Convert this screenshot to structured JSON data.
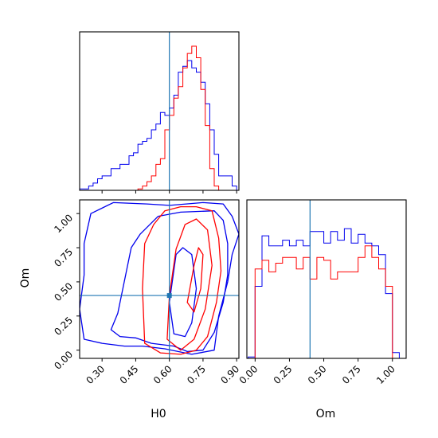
{
  "chart_data": {
    "type": "corner",
    "parameters": [
      {
        "name": "H0",
        "label": "H0",
        "range": [
          0.2,
          0.91
        ],
        "ticks": [
          "0.30",
          "0.45",
          "0.60",
          "0.75",
          "0.90"
        ],
        "tick_values": [
          0.3,
          0.45,
          0.6,
          0.75,
          0.9
        ],
        "truth": 0.6
      },
      {
        "name": "Om",
        "label": "Om",
        "range": [
          -0.06,
          1.1
        ],
        "ticks": [
          "0.00",
          "0.25",
          "0.50",
          "0.75",
          "1.00"
        ],
        "tick_values": [
          0.0,
          0.25,
          0.5,
          0.75,
          1.0
        ],
        "truth": 0.4
      }
    ],
    "colors": {
      "series_a": "#0000ee",
      "series_b": "#ff0000",
      "truth": "#1f77b4"
    },
    "series": [
      {
        "color": "#0000ee",
        "hist_H0": {
          "bins": [
            0.2,
            0.22,
            0.24,
            0.26,
            0.28,
            0.3,
            0.32,
            0.34,
            0.36,
            0.38,
            0.4,
            0.42,
            0.44,
            0.46,
            0.48,
            0.5,
            0.52,
            0.54,
            0.56,
            0.58,
            0.6,
            0.62,
            0.64,
            0.66,
            0.68,
            0.7,
            0.72,
            0.74,
            0.76,
            0.78,
            0.8,
            0.82,
            0.84,
            0.86,
            0.88,
            0.9
          ],
          "counts": [
            0.01,
            0.01,
            0.03,
            0.05,
            0.08,
            0.1,
            0.1,
            0.15,
            0.15,
            0.18,
            0.18,
            0.24,
            0.26,
            0.32,
            0.34,
            0.36,
            0.42,
            0.46,
            0.54,
            0.52,
            0.57,
            0.66,
            0.82,
            0.86,
            0.9,
            0.85,
            0.82,
            0.75,
            0.6,
            0.42,
            0.25,
            0.1,
            0.1,
            0.1,
            0.03
          ]
        },
        "hist_Om": {
          "bins": [
            -0.05,
            0.0,
            0.05,
            0.1,
            0.15,
            0.2,
            0.25,
            0.3,
            0.35,
            0.4,
            0.45,
            0.5,
            0.55,
            0.6,
            0.65,
            0.7,
            0.75,
            0.8,
            0.85,
            0.9,
            0.95,
            1.0,
            1.05
          ],
          "counts": [
            0.01,
            0.5,
            0.85,
            0.78,
            0.78,
            0.82,
            0.78,
            0.82,
            0.78,
            0.88,
            0.88,
            0.8,
            0.88,
            0.82,
            0.9,
            0.8,
            0.86,
            0.8,
            0.78,
            0.72,
            0.45,
            0.04
          ]
        },
        "contours": [
          [
            [
              0.2,
              0.3
            ],
            [
              0.22,
              0.55
            ],
            [
              0.22,
              0.78
            ],
            [
              0.25,
              1.0
            ],
            [
              0.35,
              1.08
            ],
            [
              0.5,
              1.07
            ],
            [
              0.6,
              1.06
            ],
            [
              0.75,
              1.08
            ],
            [
              0.84,
              1.07
            ],
            [
              0.88,
              0.98
            ],
            [
              0.91,
              0.85
            ],
            [
              0.88,
              0.7
            ],
            [
              0.86,
              0.5
            ],
            [
              0.82,
              0.25
            ],
            [
              0.8,
              0.0
            ],
            [
              0.7,
              -0.03
            ],
            [
              0.58,
              0.01
            ],
            [
              0.48,
              0.03
            ],
            [
              0.4,
              0.03
            ],
            [
              0.3,
              0.05
            ],
            [
              0.22,
              0.08
            ],
            [
              0.2,
              0.3
            ]
          ],
          [
            [
              0.34,
              0.15
            ],
            [
              0.37,
              0.27
            ],
            [
              0.43,
              0.75
            ],
            [
              0.47,
              0.85
            ],
            [
              0.55,
              0.98
            ],
            [
              0.65,
              1.01
            ],
            [
              0.8,
              1.02
            ],
            [
              0.84,
              0.95
            ],
            [
              0.86,
              0.78
            ],
            [
              0.86,
              0.55
            ],
            [
              0.84,
              0.35
            ],
            [
              0.8,
              0.13
            ],
            [
              0.75,
              0.0
            ],
            [
              0.68,
              -0.01
            ],
            [
              0.62,
              0.03
            ],
            [
              0.52,
              0.05
            ],
            [
              0.45,
              0.09
            ],
            [
              0.38,
              0.1
            ],
            [
              0.34,
              0.15
            ]
          ],
          [
            [
              0.6,
              0.35
            ],
            [
              0.63,
              0.7
            ],
            [
              0.66,
              0.75
            ],
            [
              0.7,
              0.7
            ],
            [
              0.72,
              0.45
            ],
            [
              0.7,
              0.2
            ],
            [
              0.67,
              0.1
            ],
            [
              0.62,
              0.12
            ],
            [
              0.6,
              0.35
            ]
          ]
        ]
      },
      {
        "color": "#ff0000",
        "hist_H0": {
          "bins": [
            0.46,
            0.48,
            0.5,
            0.52,
            0.54,
            0.56,
            0.58,
            0.6,
            0.62,
            0.64,
            0.66,
            0.68,
            0.7,
            0.72,
            0.74,
            0.76,
            0.78,
            0.8,
            0.82
          ],
          "counts": [
            0.01,
            0.03,
            0.06,
            0.1,
            0.18,
            0.22,
            0.42,
            0.52,
            0.64,
            0.72,
            0.85,
            0.95,
            1.0,
            0.92,
            0.7,
            0.45,
            0.15,
            0.03
          ]
        },
        "hist_Om": {
          "bins": [
            0.0,
            0.05,
            0.1,
            0.15,
            0.2,
            0.25,
            0.3,
            0.35,
            0.4,
            0.45,
            0.5,
            0.55,
            0.6,
            0.65,
            0.7,
            0.75,
            0.8,
            0.85,
            0.9,
            0.95,
            1.0
          ],
          "counts": [
            0.62,
            0.68,
            0.6,
            0.66,
            0.7,
            0.7,
            0.62,
            0.7,
            0.55,
            0.7,
            0.68,
            0.55,
            0.6,
            0.6,
            0.6,
            0.7,
            0.78,
            0.7,
            0.62,
            0.5
          ]
        },
        "contours": [
          [
            [
              0.49,
              0.05
            ],
            [
              0.48,
              0.45
            ],
            [
              0.49,
              0.78
            ],
            [
              0.53,
              0.92
            ],
            [
              0.58,
              1.02
            ],
            [
              0.65,
              1.05
            ],
            [
              0.72,
              1.05
            ],
            [
              0.79,
              1.02
            ],
            [
              0.82,
              0.82
            ],
            [
              0.83,
              0.58
            ],
            [
              0.81,
              0.35
            ],
            [
              0.77,
              0.1
            ],
            [
              0.72,
              0.0
            ],
            [
              0.65,
              -0.03
            ],
            [
              0.56,
              -0.02
            ],
            [
              0.49,
              0.05
            ]
          ],
          [
            [
              0.59,
              0.08
            ],
            [
              0.6,
              0.4
            ],
            [
              0.63,
              0.74
            ],
            [
              0.67,
              0.92
            ],
            [
              0.72,
              0.96
            ],
            [
              0.77,
              0.88
            ],
            [
              0.79,
              0.62
            ],
            [
              0.76,
              0.3
            ],
            [
              0.71,
              0.08
            ],
            [
              0.65,
              0.0
            ],
            [
              0.59,
              0.08
            ]
          ],
          [
            [
              0.68,
              0.35
            ],
            [
              0.71,
              0.62
            ],
            [
              0.73,
              0.75
            ],
            [
              0.75,
              0.7
            ],
            [
              0.74,
              0.45
            ],
            [
              0.71,
              0.28
            ],
            [
              0.68,
              0.35
            ]
          ]
        ]
      }
    ],
    "xlabel_bottom_left": "H0",
    "ylabel_left": "Om",
    "xlabel_bottom_right": "Om"
  }
}
